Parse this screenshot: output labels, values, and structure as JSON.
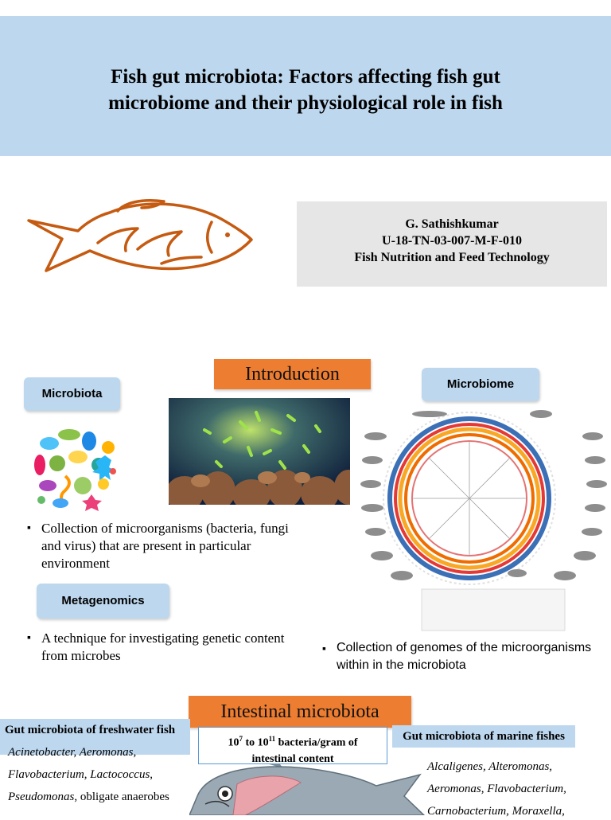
{
  "header": {
    "title_line1": "Fish gut microbiota: Factors affecting fish gut",
    "title_line2": "microbiome and their physiological role in fish"
  },
  "author": {
    "name": "G. Sathishkumar",
    "id": "U-18-TN-03-007-M-F-010",
    "dept": "Fish Nutrition and Feed Technology"
  },
  "sections": {
    "introduction": "Introduction",
    "microbiota": "Microbiota",
    "microbiome": "Microbiome",
    "metagenomics": "Metagenomics",
    "intestinal": "Intestinal microbiota"
  },
  "bullets": {
    "microbiota_def": "Collection of microorganisms (bacteria, fungi and virus) that are present in particular environment",
    "metagenomics_def": "A technique for investigating genetic content from microbes",
    "microbiome_def": "Collection of genomes of the microorganisms within in the microbiota"
  },
  "intestinal": {
    "count_prefix": "10",
    "count_exp1": "7",
    "count_mid": " to 10",
    "count_exp2": "11",
    "count_suffix": " bacteria/gram of",
    "count_line2": "intestinal content",
    "freshwater_title": "Gut microbiota of freshwater fish",
    "freshwater_line1": "Acinetobacter, Aeromonas,",
    "freshwater_line2": "Flavobacterium, Lactococcus,",
    "freshwater_line3_italic": "Pseudomonas",
    "freshwater_line3_rest": ", obligate anaerobes",
    "marine_title": "Gut microbiota of marine fishes",
    "marine_line1": "Alcaligenes, Alteromonas,",
    "marine_line2": "Aeromonas, Flavobacterium,",
    "marine_line3": "Carnobacterium, Moraxella,"
  },
  "colors": {
    "header_bg": "#bdd7ee",
    "accent_orange": "#ed7d31",
    "fish_outline": "#c55a11"
  },
  "icons": {
    "fish": "fish-outline-icon"
  }
}
